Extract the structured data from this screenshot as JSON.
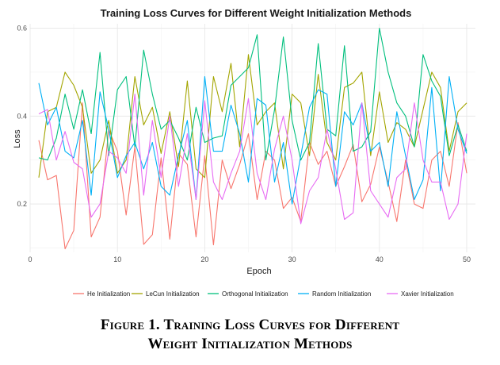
{
  "caption": {
    "line1": "Figure 1. Training Loss Curves for Different",
    "line2": "Weight Initialization Methods"
  },
  "chart_data": {
    "type": "line",
    "title": "Training Loss Curves for Different Weight Initialization Methods",
    "xlabel": "Epoch",
    "ylabel": "Loss",
    "xlim": [
      0,
      51
    ],
    "ylim": [
      0.09,
      0.61
    ],
    "x_ticks": [
      "0",
      "10",
      "20",
      "30",
      "40",
      "50"
    ],
    "y_ticks": [
      "0.2",
      "0.4",
      "0.6"
    ],
    "grid": true,
    "legend_position": "bottom",
    "x": [
      1,
      2,
      3,
      4,
      5,
      6,
      7,
      8,
      9,
      10,
      11,
      12,
      13,
      14,
      15,
      16,
      17,
      18,
      19,
      20,
      21,
      22,
      23,
      24,
      25,
      26,
      27,
      28,
      29,
      30,
      31,
      32,
      33,
      34,
      35,
      36,
      37,
      38,
      39,
      40,
      41,
      42,
      43,
      44,
      45,
      46,
      47,
      48,
      49,
      50
    ],
    "series": [
      {
        "name": "He Initialization",
        "color": "#F8766D",
        "values": [
          0.345,
          0.255,
          0.265,
          0.098,
          0.14,
          0.43,
          0.125,
          0.17,
          0.37,
          0.32,
          0.175,
          0.33,
          0.108,
          0.13,
          0.305,
          0.12,
          0.315,
          0.29,
          0.125,
          0.31,
          0.107,
          0.3,
          0.235,
          0.29,
          0.36,
          0.21,
          0.32,
          0.3,
          0.19,
          0.215,
          0.16,
          0.34,
          0.29,
          0.32,
          0.24,
          0.285,
          0.335,
          0.205,
          0.245,
          0.33,
          0.25,
          0.16,
          0.3,
          0.2,
          0.19,
          0.3,
          0.32,
          0.24,
          0.385,
          0.27
        ]
      },
      {
        "name": "LeCun Initialization",
        "color": "#A3A500",
        "values": [
          0.26,
          0.41,
          0.42,
          0.5,
          0.47,
          0.42,
          0.27,
          0.3,
          0.39,
          0.27,
          0.3,
          0.49,
          0.38,
          0.42,
          0.315,
          0.41,
          0.285,
          0.48,
          0.28,
          0.26,
          0.49,
          0.41,
          0.52,
          0.33,
          0.54,
          0.38,
          0.41,
          0.43,
          0.28,
          0.45,
          0.43,
          0.31,
          0.495,
          0.34,
          0.3,
          0.465,
          0.475,
          0.5,
          0.31,
          0.455,
          0.34,
          0.385,
          0.37,
          0.33,
          0.415,
          0.5,
          0.465,
          0.32,
          0.41,
          0.43
        ]
      },
      {
        "name": "Orthogonal Initialization",
        "color": "#00BF7D",
        "values": [
          0.305,
          0.3,
          0.35,
          0.45,
          0.37,
          0.46,
          0.36,
          0.545,
          0.31,
          0.46,
          0.49,
          0.33,
          0.55,
          0.45,
          0.37,
          0.39,
          0.35,
          0.3,
          0.42,
          0.34,
          0.35,
          0.355,
          0.47,
          0.49,
          0.51,
          0.585,
          0.3,
          0.415,
          0.58,
          0.39,
          0.3,
          0.34,
          0.565,
          0.37,
          0.355,
          0.56,
          0.32,
          0.33,
          0.365,
          0.6,
          0.5,
          0.43,
          0.4,
          0.33,
          0.54,
          0.48,
          0.445,
          0.31,
          0.38,
          0.32
        ]
      },
      {
        "name": "Random Initialization",
        "color": "#00B0F6",
        "values": [
          0.475,
          0.38,
          0.42,
          0.32,
          0.305,
          0.39,
          0.22,
          0.455,
          0.37,
          0.26,
          0.31,
          0.34,
          0.28,
          0.34,
          0.24,
          0.22,
          0.31,
          0.39,
          0.21,
          0.49,
          0.32,
          0.32,
          0.425,
          0.36,
          0.25,
          0.44,
          0.425,
          0.25,
          0.34,
          0.2,
          0.31,
          0.42,
          0.46,
          0.45,
          0.24,
          0.41,
          0.38,
          0.43,
          0.32,
          0.34,
          0.24,
          0.41,
          0.31,
          0.21,
          0.255,
          0.465,
          0.23,
          0.49,
          0.37,
          0.315
        ]
      },
      {
        "name": "Xavier Initialization",
        "color": "#E76BF3",
        "values": [
          0.405,
          0.415,
          0.3,
          0.365,
          0.295,
          0.28,
          0.17,
          0.2,
          0.32,
          0.305,
          0.27,
          0.45,
          0.22,
          0.39,
          0.26,
          0.4,
          0.24,
          0.36,
          0.21,
          0.435,
          0.25,
          0.21,
          0.27,
          0.32,
          0.44,
          0.27,
          0.21,
          0.325,
          0.4,
          0.3,
          0.155,
          0.23,
          0.26,
          0.37,
          0.28,
          0.165,
          0.18,
          0.43,
          0.23,
          0.2,
          0.17,
          0.26,
          0.28,
          0.43,
          0.3,
          0.25,
          0.25,
          0.165,
          0.2,
          0.36
        ]
      }
    ]
  }
}
